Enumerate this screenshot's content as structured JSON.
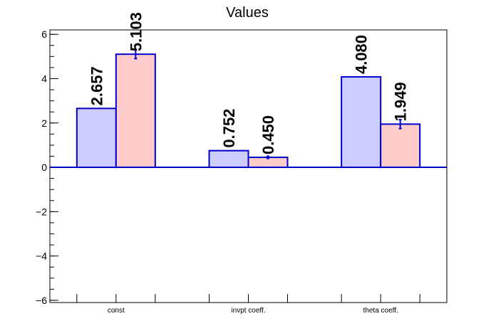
{
  "chart_data": {
    "type": "bar",
    "title": "Values",
    "xlabel": "",
    "ylabel": "",
    "categories": [
      "const",
      "invpt coeff.",
      "theta coeff."
    ],
    "series": [
      {
        "values": [
          2.657,
          0.752,
          4.08
        ],
        "labels": [
          "2.657",
          "0.752",
          "4.080"
        ],
        "fill": "#ccccff",
        "stroke": "#0000cc",
        "errors": [
          0,
          0,
          0
        ]
      },
      {
        "values": [
          5.103,
          0.45,
          1.949
        ],
        "labels": [
          "5.103",
          "0.450",
          "1.949"
        ],
        "fill": "#ffcccc",
        "stroke": "#0000cc",
        "errors": [
          0.2,
          0.05,
          0.2
        ]
      }
    ],
    "ylim": [
      -6.1,
      6.2
    ],
    "yticks": [
      -6,
      -4,
      -2,
      0,
      2,
      4,
      6
    ],
    "ytick_labels": [
      "−6",
      "−4",
      "−2",
      "0",
      "2",
      "4",
      "6"
    ],
    "grid": false,
    "legend": "none"
  }
}
